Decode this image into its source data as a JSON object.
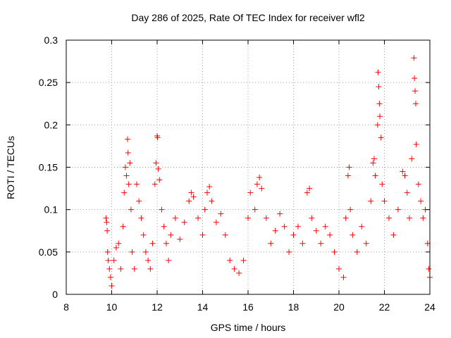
{
  "chart_data": {
    "type": "scatter",
    "title": "Day 286 of 2025, Rate Of TEC Index for receiver wfl2",
    "xlabel": "GPS time / hours",
    "ylabel": "ROTI / TECUs",
    "xlim": [
      8,
      24
    ],
    "ylim": [
      0,
      0.3
    ],
    "xticks": [
      8,
      10,
      12,
      14,
      16,
      18,
      20,
      22,
      24
    ],
    "yticks": [
      0,
      0.05,
      0.1,
      0.15,
      0.2,
      0.25,
      0.3
    ],
    "xtick_labels": [
      "8",
      "10",
      "12",
      "14",
      "16",
      "18",
      "20",
      "22",
      "24"
    ],
    "ytick_labels": [
      "0",
      "0.05",
      "0.1",
      "0.15",
      "0.2",
      "0.25",
      "0.3"
    ],
    "grid": true,
    "marker": "+",
    "marker_color": "#ff0000",
    "series": [
      {
        "name": "ROTI",
        "points": [
          [
            9.75,
            0.09
          ],
          [
            9.78,
            0.085
          ],
          [
            9.8,
            0.075
          ],
          [
            9.82,
            0.05
          ],
          [
            9.85,
            0.04
          ],
          [
            9.9,
            0.03
          ],
          [
            9.95,
            0.02
          ],
          [
            10.0,
            0.01
          ],
          [
            10.1,
            0.04
          ],
          [
            10.2,
            0.055
          ],
          [
            10.3,
            0.06
          ],
          [
            10.4,
            0.03
          ],
          [
            10.5,
            0.08
          ],
          [
            10.55,
            0.12
          ],
          [
            10.6,
            0.15
          ],
          [
            10.65,
            0.14
          ],
          [
            10.7,
            0.183
          ],
          [
            10.72,
            0.167
          ],
          [
            10.75,
            0.13
          ],
          [
            10.8,
            0.155
          ],
          [
            10.85,
            0.1
          ],
          [
            10.9,
            0.05
          ],
          [
            11.0,
            0.03
          ],
          [
            11.1,
            0.13
          ],
          [
            11.2,
            0.11
          ],
          [
            11.3,
            0.09
          ],
          [
            11.4,
            0.07
          ],
          [
            11.5,
            0.05
          ],
          [
            11.6,
            0.04
          ],
          [
            11.7,
            0.03
          ],
          [
            11.8,
            0.06
          ],
          [
            11.9,
            0.13
          ],
          [
            11.95,
            0.155
          ],
          [
            12.0,
            0.187
          ],
          [
            12.02,
            0.185
          ],
          [
            12.05,
            0.148
          ],
          [
            12.1,
            0.135
          ],
          [
            12.2,
            0.1
          ],
          [
            12.3,
            0.08
          ],
          [
            12.4,
            0.06
          ],
          [
            12.5,
            0.04
          ],
          [
            12.6,
            0.07
          ],
          [
            12.8,
            0.09
          ],
          [
            13.0,
            0.065
          ],
          [
            13.2,
            0.085
          ],
          [
            13.4,
            0.11
          ],
          [
            13.5,
            0.12
          ],
          [
            13.6,
            0.115
          ],
          [
            13.8,
            0.09
          ],
          [
            14.0,
            0.07
          ],
          [
            14.1,
            0.1
          ],
          [
            14.2,
            0.12
          ],
          [
            14.3,
            0.127
          ],
          [
            14.4,
            0.11
          ],
          [
            14.6,
            0.085
          ],
          [
            14.8,
            0.095
          ],
          [
            15.0,
            0.07
          ],
          [
            15.2,
            0.04
          ],
          [
            15.4,
            0.03
          ],
          [
            15.6,
            0.025
          ],
          [
            15.8,
            0.04
          ],
          [
            16.0,
            0.09
          ],
          [
            16.1,
            0.12
          ],
          [
            16.3,
            0.1
          ],
          [
            16.4,
            0.13
          ],
          [
            16.5,
            0.138
          ],
          [
            16.6,
            0.125
          ],
          [
            16.8,
            0.09
          ],
          [
            17.0,
            0.06
          ],
          [
            17.2,
            0.075
          ],
          [
            17.4,
            0.095
          ],
          [
            17.6,
            0.08
          ],
          [
            17.8,
            0.05
          ],
          [
            18.0,
            0.07
          ],
          [
            18.2,
            0.08
          ],
          [
            18.4,
            0.06
          ],
          [
            18.6,
            0.12
          ],
          [
            18.7,
            0.125
          ],
          [
            18.8,
            0.09
          ],
          [
            19.0,
            0.075
          ],
          [
            19.2,
            0.06
          ],
          [
            19.4,
            0.08
          ],
          [
            19.6,
            0.07
          ],
          [
            19.8,
            0.05
          ],
          [
            20.0,
            0.03
          ],
          [
            20.2,
            0.02
          ],
          [
            20.3,
            0.09
          ],
          [
            20.4,
            0.14
          ],
          [
            20.45,
            0.15
          ],
          [
            20.5,
            0.1
          ],
          [
            20.6,
            0.07
          ],
          [
            20.8,
            0.05
          ],
          [
            21.0,
            0.08
          ],
          [
            21.2,
            0.06
          ],
          [
            21.4,
            0.11
          ],
          [
            21.5,
            0.155
          ],
          [
            21.55,
            0.16
          ],
          [
            21.6,
            0.14
          ],
          [
            21.7,
            0.2
          ],
          [
            21.72,
            0.262
          ],
          [
            21.75,
            0.245
          ],
          [
            21.78,
            0.225
          ],
          [
            21.8,
            0.21
          ],
          [
            21.85,
            0.185
          ],
          [
            21.9,
            0.13
          ],
          [
            22.0,
            0.11
          ],
          [
            22.2,
            0.09
          ],
          [
            22.4,
            0.07
          ],
          [
            22.6,
            0.1
          ],
          [
            22.8,
            0.145
          ],
          [
            22.9,
            0.14
          ],
          [
            23.0,
            0.12
          ],
          [
            23.1,
            0.09
          ],
          [
            23.2,
            0.16
          ],
          [
            23.3,
            0.279
          ],
          [
            23.32,
            0.255
          ],
          [
            23.35,
            0.24
          ],
          [
            23.38,
            0.225
          ],
          [
            23.4,
            0.177
          ],
          [
            23.5,
            0.13
          ],
          [
            23.6,
            0.11
          ],
          [
            23.7,
            0.09
          ],
          [
            23.8,
            0.1
          ],
          [
            23.9,
            0.06
          ],
          [
            23.95,
            0.03
          ],
          [
            24.0,
            0.02
          ]
        ]
      }
    ]
  }
}
